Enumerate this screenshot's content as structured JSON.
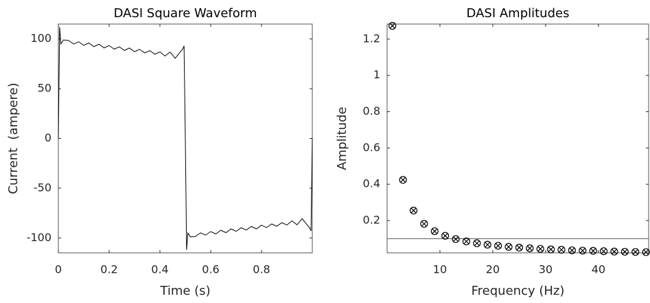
{
  "chart_data": [
    {
      "type": "line",
      "title": "DASI Square Waveform",
      "x_label": "Time (s)",
      "y_label": "Current  (ampere)",
      "xlim": [
        0,
        1
      ],
      "ylim": [
        -115,
        115
      ],
      "xticks": [
        0,
        0.2,
        0.4,
        0.6,
        0.8
      ],
      "yticks": [
        -100,
        -50,
        0,
        50,
        100
      ],
      "series": [
        {
          "color": "#000000",
          "x": [
            0,
            0.005,
            0.01,
            0.02,
            0.04,
            0.06,
            0.08,
            0.1,
            0.12,
            0.14,
            0.16,
            0.18,
            0.2,
            0.22,
            0.24,
            0.26,
            0.28,
            0.3,
            0.32,
            0.34,
            0.36,
            0.38,
            0.4,
            0.42,
            0.44,
            0.46,
            0.48,
            0.49,
            0.495,
            0.5,
            0.505,
            0.51,
            0.52,
            0.54,
            0.56,
            0.58,
            0.6,
            0.62,
            0.64,
            0.66,
            0.68,
            0.7,
            0.72,
            0.74,
            0.76,
            0.78,
            0.8,
            0.82,
            0.84,
            0.86,
            0.88,
            0.9,
            0.92,
            0.94,
            0.96,
            0.98,
            0.99,
            0.995,
            1.0
          ],
          "values": [
            0,
            112,
            95,
            99,
            98.5,
            94.9,
            97.2,
            93.6,
            96.0,
            92.3,
            94.7,
            91.0,
            93.4,
            89.8,
            92.1,
            88.5,
            90.9,
            87.2,
            89.6,
            86.0,
            88.3,
            84.7,
            87.0,
            82.9,
            86.8,
            80.6,
            87,
            90,
            93,
            0,
            -112,
            -95,
            -99,
            -98.5,
            -94.9,
            -97.2,
            -93.6,
            -96.0,
            -92.3,
            -94.7,
            -91.0,
            -93.4,
            -89.8,
            -92.1,
            -88.5,
            -90.9,
            -87.2,
            -89.6,
            -86.0,
            -88.3,
            -84.7,
            -87.0,
            -82.9,
            -86.8,
            -80.6,
            -87,
            -90,
            -93,
            0
          ]
        }
      ]
    },
    {
      "type": "scatter",
      "title": "DASI Amplitudes",
      "x_label": "Frequency (Hz)",
      "y_label": "Amplitude",
      "xlim": [
        0,
        49.5
      ],
      "ylim": [
        0.022,
        1.283
      ],
      "xticks": [
        10,
        20,
        30,
        40
      ],
      "yticks": [
        0.2,
        0.4,
        0.6,
        0.8,
        1,
        1.2
      ],
      "reference_line": 0.1,
      "series": [
        {
          "color": "#000000",
          "x": [
            1,
            3,
            5,
            7,
            9,
            11,
            13,
            15,
            17,
            19,
            21,
            23,
            25,
            27,
            29,
            31,
            33,
            35,
            37,
            39,
            41,
            43,
            45,
            47,
            49
          ],
          "values": [
            1.273,
            0.424,
            0.255,
            0.182,
            0.141,
            0.116,
            0.098,
            0.085,
            0.075,
            0.067,
            0.061,
            0.055,
            0.051,
            0.047,
            0.044,
            0.041,
            0.039,
            0.036,
            0.034,
            0.033,
            0.031,
            0.029,
            0.028,
            0.027,
            0.026
          ]
        }
      ]
    }
  ]
}
